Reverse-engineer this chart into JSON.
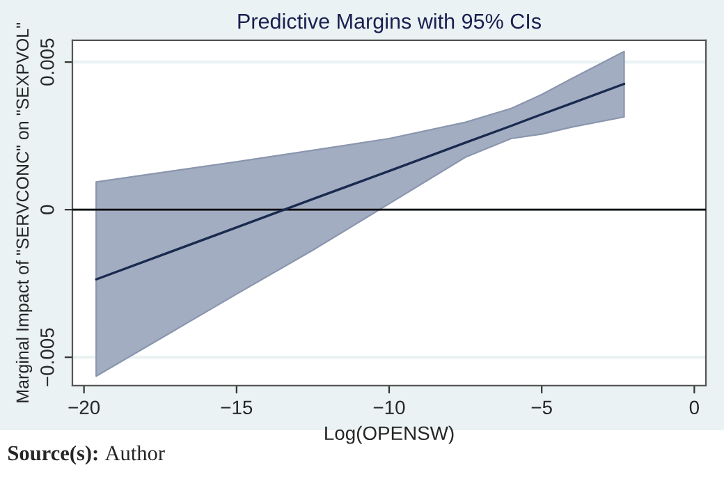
{
  "chart_data": {
    "type": "line",
    "title": "Predictive Margins with 95% CIs",
    "xlabel": "Log(OPENSW)",
    "ylabel": "Marginal Impact of \"SERVCONC\" on \"SEXPVOL\"",
    "x": [
      -19.6,
      -15,
      -12.5,
      -10,
      -7.5,
      -6,
      -5,
      -4,
      -2.3
    ],
    "series": [
      {
        "color": "#1a2a4f",
        "values": [
          -0.00236,
          -0.0006,
          0.00036,
          0.00131,
          0.00227,
          0.00284,
          0.00323,
          0.00361,
          0.00426
        ],
        "lower": [
          -0.00564,
          -0.00286,
          -0.00137,
          0.0002,
          0.00178,
          0.00241,
          0.00256,
          0.0028,
          0.00314
        ],
        "upper": [
          0.00094,
          0.00162,
          0.00201,
          0.00241,
          0.00296,
          0.00343,
          0.0039,
          0.00445,
          0.00536
        ]
      }
    ],
    "xlim": [
      -20.38,
      0.38
    ],
    "ylim": [
      -0.00596,
      0.00574
    ],
    "xticks": [
      {
        "value": -20,
        "label": "−20"
      },
      {
        "value": -15,
        "label": "−15"
      },
      {
        "value": -10,
        "label": "−10"
      },
      {
        "value": -5,
        "label": "−5"
      },
      0
    ],
    "yticks": [
      {
        "value": -0.005,
        "label": "−0.005"
      },
      0,
      0.005
    ],
    "grid": "y",
    "ref_lines": [
      {
        "axis": "y",
        "value": 0,
        "color": "#000000"
      }
    ],
    "annotations": [
      "Source(s): Author"
    ]
  }
}
